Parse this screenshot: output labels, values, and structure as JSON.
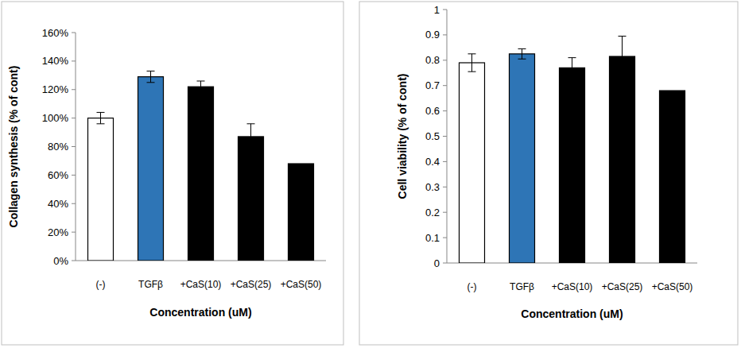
{
  "chart_data": [
    {
      "type": "bar",
      "y_label": "Collagen synthesis (% of cont)",
      "x_label": "Concentration (uM)",
      "categories": [
        "(-)",
        "TGFβ",
        "+CaS(10)",
        "+CaS(25)",
        "+CaS(50)"
      ],
      "values": [
        100,
        129,
        122,
        87,
        68
      ],
      "errors": [
        4,
        4,
        4,
        9,
        null
      ],
      "colors": [
        "#ffffff",
        "#2e75b6",
        "#000000",
        "#000000",
        "#000000"
      ],
      "ylim": [
        0,
        160
      ],
      "yticks": [
        {
          "value": 0,
          "label": "0%"
        },
        {
          "value": 20,
          "label": "20%"
        },
        {
          "value": 40,
          "label": "40%"
        },
        {
          "value": 60,
          "label": "60%"
        },
        {
          "value": 80,
          "label": "80%"
        },
        {
          "value": 100,
          "label": "100%"
        },
        {
          "value": 120,
          "label": "120%"
        },
        {
          "value": 140,
          "label": "140%"
        },
        {
          "value": 160,
          "label": "160%"
        }
      ],
      "grid": false
    },
    {
      "type": "bar",
      "y_label": "Cell viability (% of cont)",
      "x_label": "Concentration (uM)",
      "categories": [
        "(-)",
        "TGFβ",
        "+CaS(10)",
        "+CaS(25)",
        "+CaS(50)"
      ],
      "values": [
        0.79,
        0.825,
        0.77,
        0.815,
        0.68
      ],
      "errors": [
        0.035,
        0.02,
        0.04,
        0.08,
        null
      ],
      "colors": [
        "#ffffff",
        "#2e75b6",
        "#000000",
        "#000000",
        "#000000"
      ],
      "ylim": [
        0,
        1
      ],
      "yticks": [
        0,
        0.1,
        0.2,
        0.3,
        0.4,
        0.5,
        0.6,
        0.7,
        0.8,
        0.9,
        1
      ],
      "grid": false
    }
  ]
}
